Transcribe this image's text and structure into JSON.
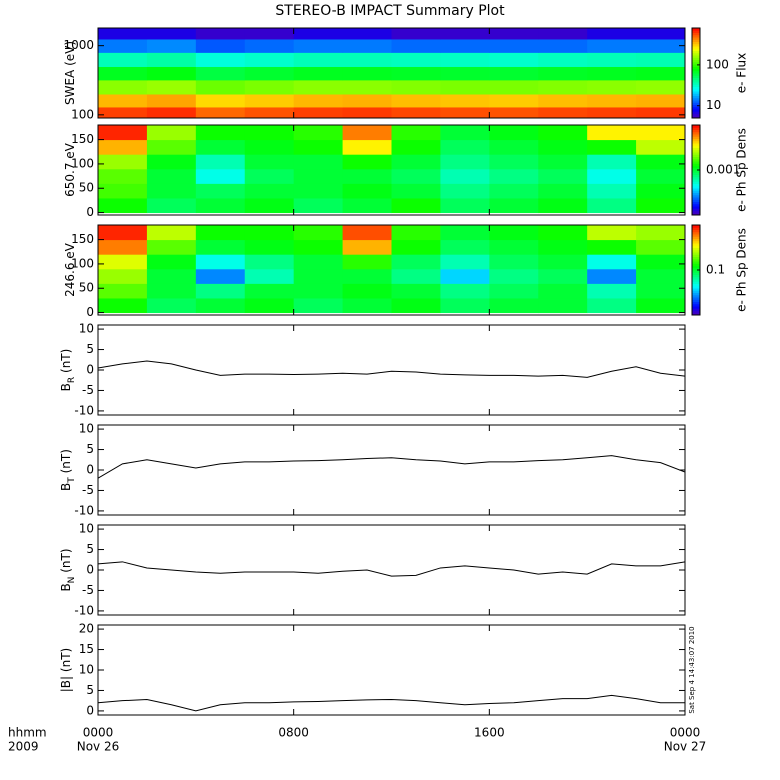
{
  "title": "STEREO-B IMPACT Summary Plot",
  "x_axis": {
    "xlim": [
      0,
      24
    ],
    "xticks": [
      {
        "value": 0,
        "label": "0000"
      },
      {
        "value": 8,
        "label": "0800"
      },
      {
        "value": 16,
        "label": "1600"
      },
      {
        "value": 24,
        "label": "0000"
      }
    ],
    "tick_dates": [
      "Nov 26",
      null,
      null,
      "Nov 27"
    ],
    "unit_label": "hhmm",
    "year": "2009"
  },
  "timestamp": "Sat Sep  4 14:43:07 2010",
  "chart_data": [
    {
      "type": "heatmap",
      "ylabel": "SWEA (eV)",
      "log_y": true,
      "ylim": [
        90,
        1800
      ],
      "yticks": [
        100,
        1000
      ],
      "x_edges": [
        0,
        2,
        4,
        6,
        8,
        10,
        12,
        14,
        16,
        18,
        20,
        22,
        24
      ],
      "y_edges": [
        90,
        130,
        200,
        320,
        500,
        800,
        1250,
        1800
      ],
      "values": [
        [
          600,
          650,
          500,
          550,
          600,
          620,
          580,
          560,
          550,
          580,
          600,
          620
        ],
        [
          350,
          380,
          300,
          320,
          350,
          360,
          340,
          330,
          320,
          340,
          350,
          360
        ],
        [
          150,
          160,
          130,
          140,
          150,
          150,
          145,
          140,
          140,
          145,
          150,
          155
        ],
        [
          70,
          75,
          60,
          65,
          70,
          70,
          68,
          66,
          65,
          68,
          70,
          72
        ],
        [
          35,
          38,
          30,
          32,
          35,
          35,
          34,
          33,
          32,
          34,
          35,
          36
        ],
        [
          14,
          15,
          12,
          13,
          14,
          14,
          13,
          13,
          13,
          13,
          14,
          14
        ],
        [
          7,
          7,
          6,
          6,
          7,
          7,
          6,
          6,
          6,
          6,
          7,
          7
        ]
      ],
      "colorbar_label": "e- Flux",
      "clim": [
        5,
        800
      ],
      "cticks": [
        10,
        100
      ]
    },
    {
      "type": "heatmap",
      "ylabel": "650.7 eV",
      "log_y": false,
      "ylim": [
        -5,
        180
      ],
      "yticks": [
        0,
        50,
        100,
        150
      ],
      "x_edges": [
        0,
        2,
        4,
        6,
        8,
        10,
        12,
        14,
        16,
        18,
        20,
        22,
        24
      ],
      "y_edges": [
        0,
        30,
        60,
        90,
        120,
        150,
        180
      ],
      "values": [
        [
          0.0012,
          0.0009,
          0.001,
          0.0011,
          0.0009,
          0.001,
          0.0012,
          0.0009,
          0.001,
          0.0011,
          0.0008,
          0.0012
        ],
        [
          0.0014,
          0.001,
          0.0009,
          0.001,
          0.001,
          0.0011,
          0.001,
          0.0008,
          0.0009,
          0.001,
          0.0007,
          0.0011
        ],
        [
          0.0015,
          0.001,
          0.0006,
          0.0009,
          0.001,
          0.001,
          0.0009,
          0.0007,
          0.0008,
          0.0009,
          0.0006,
          0.001
        ],
        [
          0.0018,
          0.0011,
          0.0007,
          0.001,
          0.001,
          0.0012,
          0.001,
          0.0008,
          0.0009,
          0.001,
          0.0007,
          0.0011
        ],
        [
          0.003,
          0.0015,
          0.001,
          0.0011,
          0.0012,
          0.0025,
          0.0012,
          0.0009,
          0.001,
          0.0011,
          0.0012,
          0.002
        ],
        [
          0.0045,
          0.0018,
          0.0012,
          0.0012,
          0.0013,
          0.0035,
          0.0013,
          0.001,
          0.0011,
          0.0012,
          0.0025,
          0.0025
        ]
      ],
      "colorbar_label": "e- Ph Sp Dens",
      "clim": [
        0.0002,
        0.005
      ],
      "cticks": [
        0.001
      ]
    },
    {
      "type": "heatmap",
      "ylabel": "246.6 eV",
      "log_y": false,
      "ylim": [
        -5,
        180
      ],
      "yticks": [
        0,
        50,
        100,
        150
      ],
      "x_edges": [
        0,
        2,
        4,
        6,
        8,
        10,
        12,
        14,
        16,
        18,
        20,
        22,
        24
      ],
      "y_edges": [
        0,
        30,
        60,
        90,
        120,
        150,
        180
      ],
      "values": [
        [
          0.12,
          0.09,
          0.1,
          0.11,
          0.09,
          0.1,
          0.11,
          0.09,
          0.1,
          0.1,
          0.08,
          0.11
        ],
        [
          0.15,
          0.1,
          0.08,
          0.1,
          0.1,
          0.11,
          0.1,
          0.08,
          0.09,
          0.1,
          0.07,
          0.1
        ],
        [
          0.18,
          0.1,
          0.04,
          0.07,
          0.1,
          0.1,
          0.08,
          0.05,
          0.08,
          0.09,
          0.04,
          0.1
        ],
        [
          0.22,
          0.11,
          0.06,
          0.08,
          0.1,
          0.13,
          0.09,
          0.07,
          0.09,
          0.1,
          0.06,
          0.11
        ],
        [
          0.35,
          0.15,
          0.1,
          0.11,
          0.12,
          0.3,
          0.12,
          0.09,
          0.1,
          0.11,
          0.12,
          0.15
        ],
        [
          0.45,
          0.2,
          0.12,
          0.12,
          0.13,
          0.4,
          0.13,
          0.1,
          0.11,
          0.12,
          0.2,
          0.18
        ]
      ],
      "colorbar_label": "e- Ph Sp Dens",
      "clim": [
        0.02,
        0.5
      ],
      "cticks": [
        0.1
      ]
    },
    {
      "type": "line",
      "ylabel": "B",
      "ylabel_subscript": "R",
      "ylabel_unit": "(nT)",
      "ylim": [
        -11,
        11
      ],
      "yticks": [
        -10,
        -5,
        0,
        5,
        10
      ],
      "color": "#000000",
      "x": [
        0,
        1,
        2,
        3,
        4,
        5,
        6,
        7,
        8,
        9,
        10,
        11,
        12,
        13,
        14,
        15,
        16,
        17,
        18,
        19,
        20,
        21,
        22,
        23,
        24
      ],
      "values": [
        0.5,
        1.5,
        2.2,
        1.5,
        0,
        -1.3,
        -1,
        -1,
        -1.1,
        -1,
        -0.8,
        -1,
        -0.3,
        -0.5,
        -1,
        -1.2,
        -1.3,
        -1.3,
        -1.5,
        -1.3,
        -1.8,
        -0.3,
        0.8,
        -0.8,
        -1.5
      ]
    },
    {
      "type": "line",
      "ylabel": "B",
      "ylabel_subscript": "T",
      "ylabel_unit": "(nT)",
      "ylim": [
        -11,
        11
      ],
      "yticks": [
        -10,
        -5,
        0,
        5,
        10
      ],
      "color": "#000000",
      "x": [
        0,
        1,
        2,
        3,
        4,
        5,
        6,
        7,
        8,
        9,
        10,
        11,
        12,
        13,
        14,
        15,
        16,
        17,
        18,
        19,
        20,
        21,
        22,
        23,
        24
      ],
      "values": [
        -2,
        1.5,
        2.5,
        1.5,
        0.5,
        1.5,
        2,
        2,
        2.2,
        2.3,
        2.5,
        2.8,
        3,
        2.5,
        2.2,
        1.5,
        2,
        2,
        2.3,
        2.5,
        3,
        3.5,
        2.5,
        1.8,
        -0.5
      ]
    },
    {
      "type": "line",
      "ylabel": "B",
      "ylabel_subscript": "N",
      "ylabel_unit": "(nT)",
      "ylim": [
        -11,
        11
      ],
      "yticks": [
        -10,
        -5,
        0,
        5,
        10
      ],
      "color": "#000000",
      "x": [
        0,
        1,
        2,
        3,
        4,
        5,
        6,
        7,
        8,
        9,
        10,
        11,
        12,
        13,
        14,
        15,
        16,
        17,
        18,
        19,
        20,
        21,
        22,
        23,
        24
      ],
      "values": [
        1.5,
        2,
        0.5,
        0,
        -0.5,
        -0.8,
        -0.5,
        -0.5,
        -0.5,
        -0.8,
        -0.3,
        0,
        -1.5,
        -1.3,
        0.5,
        1,
        0.5,
        0,
        -1,
        -0.5,
        -1,
        1.5,
        1,
        1,
        2
      ]
    },
    {
      "type": "line",
      "ylabel": "|B|",
      "ylabel_unit": "(nT)",
      "ylim": [
        -1,
        21
      ],
      "yticks": [
        0,
        5,
        10,
        15,
        20
      ],
      "color": "#000000",
      "x": [
        0,
        1,
        2,
        3,
        4,
        5,
        6,
        7,
        8,
        9,
        10,
        11,
        12,
        13,
        14,
        15,
        16,
        17,
        18,
        19,
        20,
        21,
        22,
        23,
        24
      ],
      "values": [
        2,
        2.5,
        2.8,
        1.5,
        0,
        1.5,
        2,
        2,
        2.2,
        2.3,
        2.5,
        2.7,
        2.8,
        2.5,
        2,
        1.5,
        1.8,
        2,
        2.5,
        3,
        3,
        3.8,
        3,
        2,
        2
      ]
    }
  ]
}
